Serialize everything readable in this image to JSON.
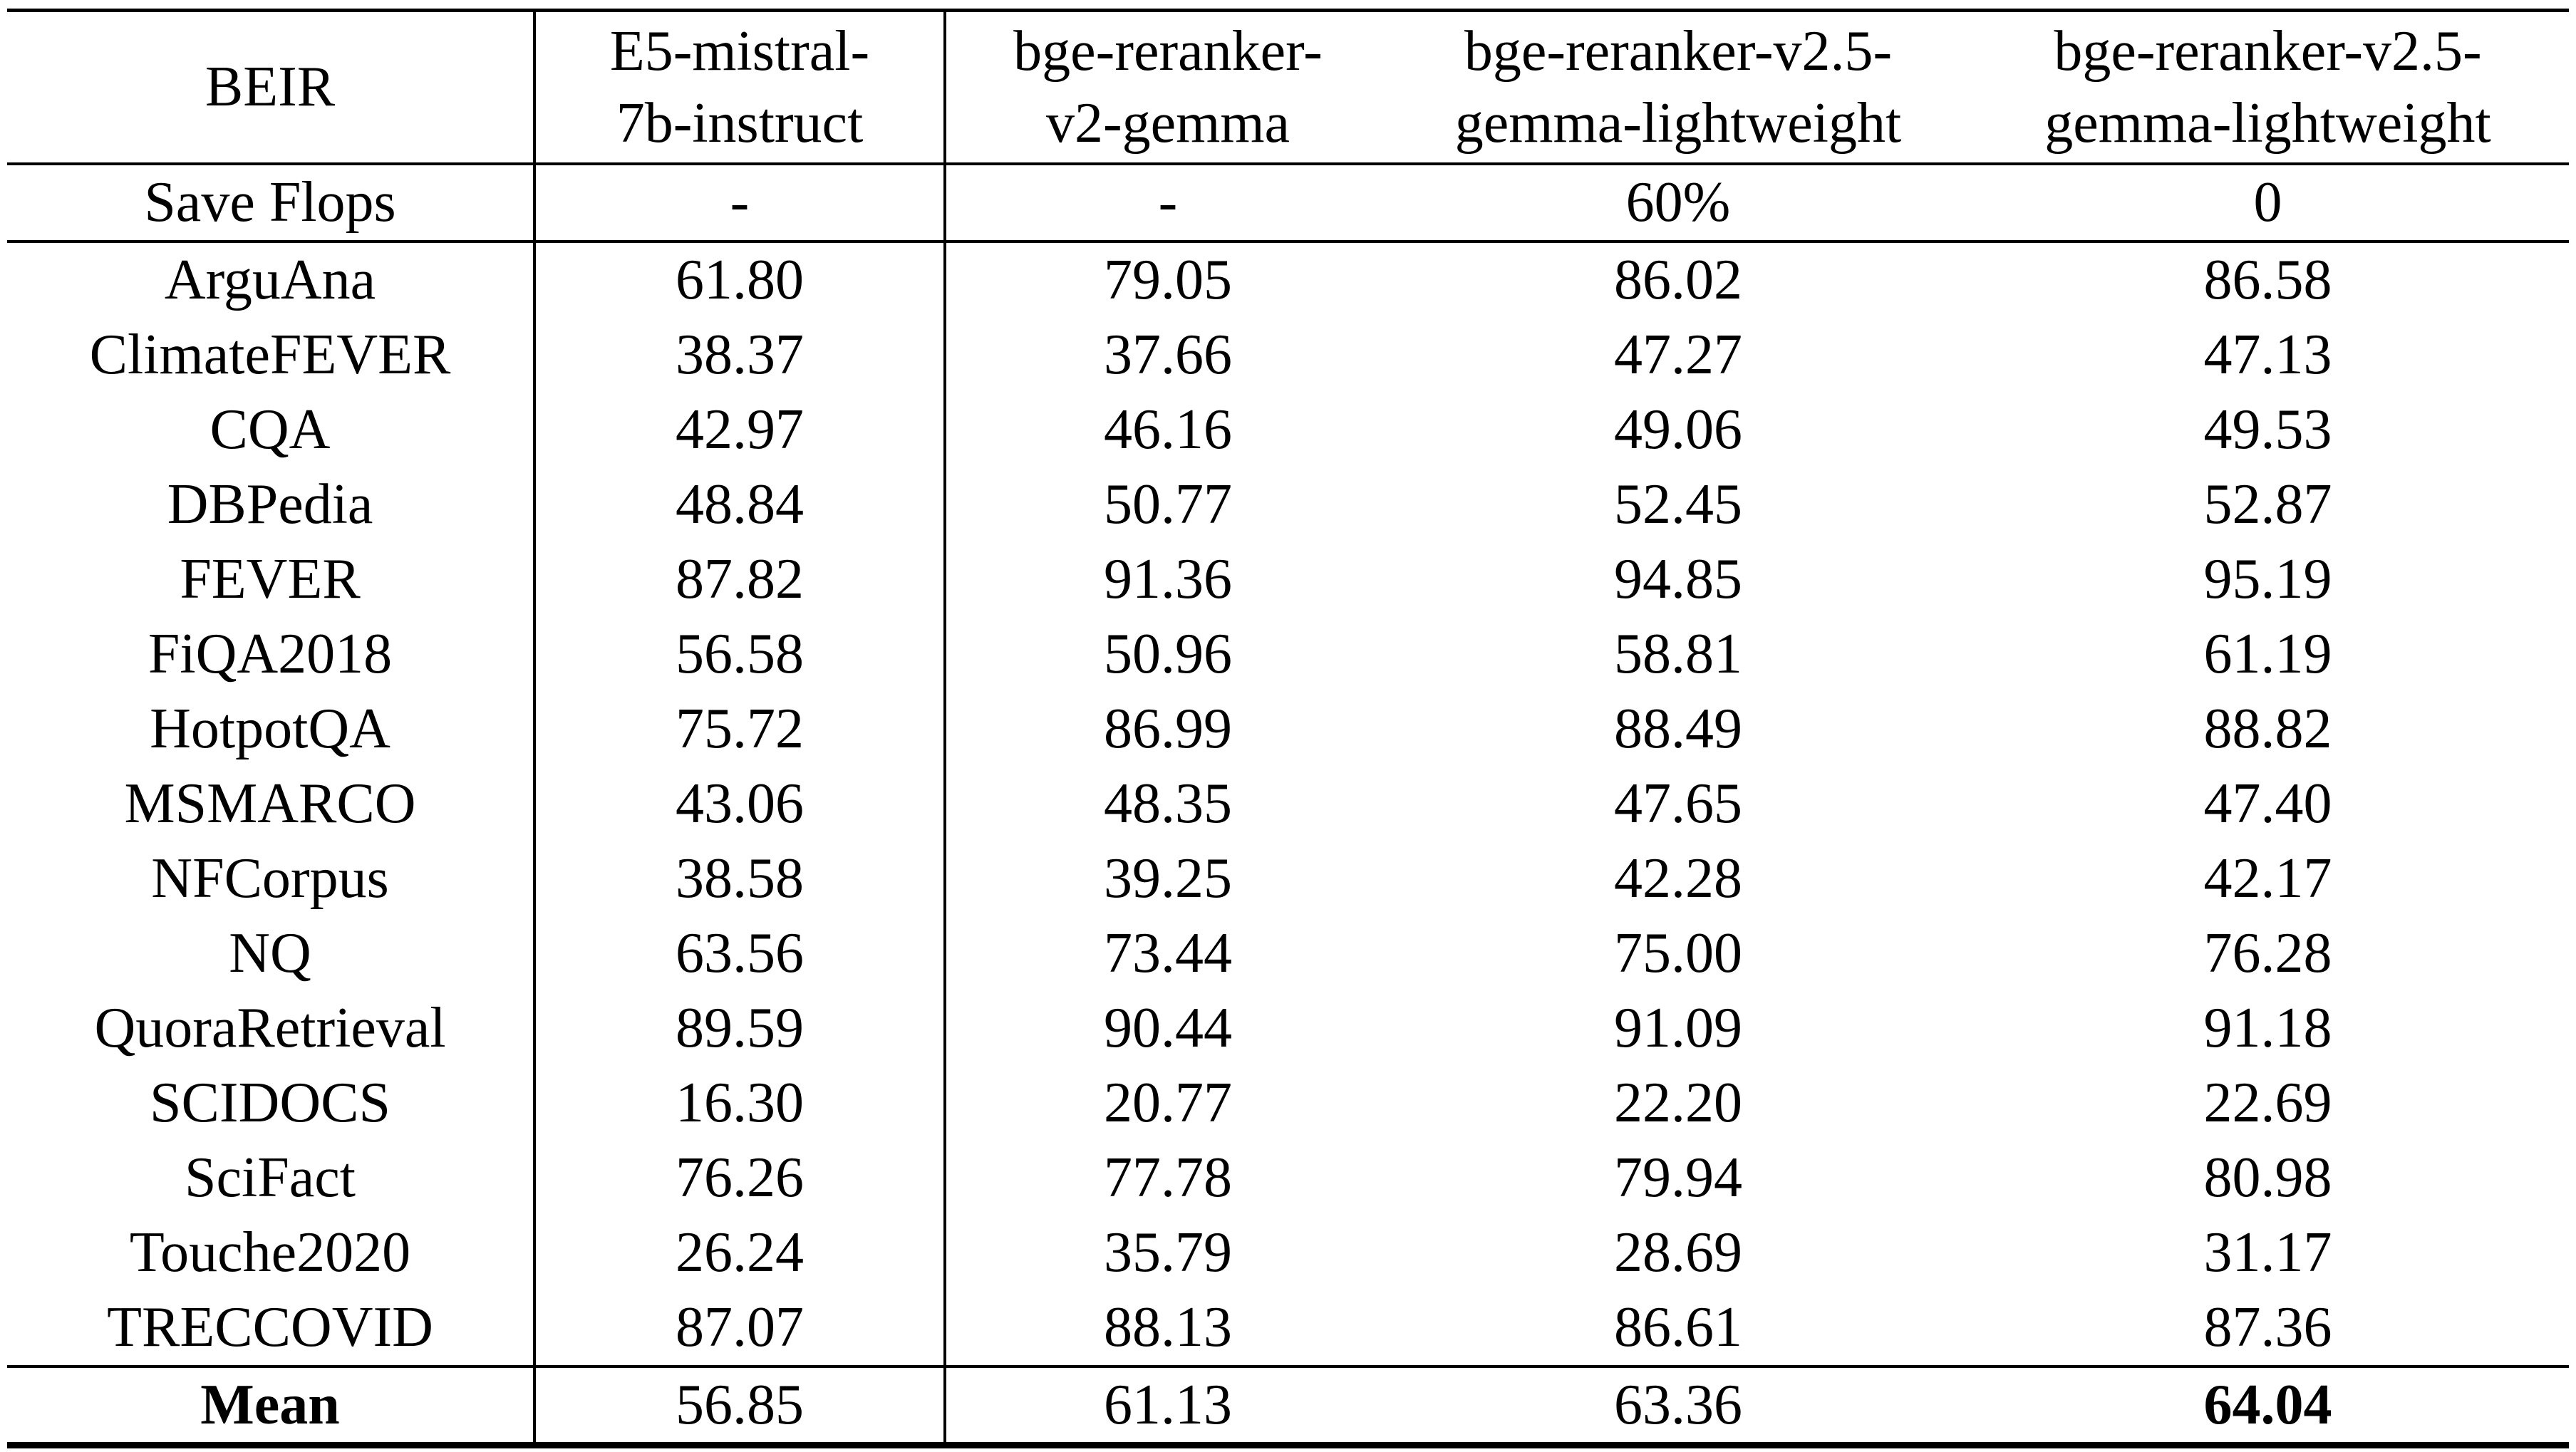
{
  "table": {
    "title": "BEIR",
    "columns": [
      {
        "lines": [
          "BEIR"
        ]
      },
      {
        "lines": [
          "E5-mistral-",
          "7b-instruct"
        ]
      },
      {
        "lines": [
          "bge-reranker-",
          "v2-gemma"
        ]
      },
      {
        "lines": [
          "bge-reranker-v2.5-",
          "gemma-lightweight"
        ]
      },
      {
        "lines": [
          "bge-reranker-v2.5-",
          "gemma-lightweight"
        ]
      }
    ],
    "save_flops": {
      "label": "Save Flops",
      "values": [
        "-",
        "-",
        "60%",
        "0"
      ]
    },
    "rows": [
      {
        "label": "ArguAna",
        "values": [
          "61.80",
          "79.05",
          "86.02",
          "86.58"
        ]
      },
      {
        "label": "ClimateFEVER",
        "values": [
          "38.37",
          "37.66",
          "47.27",
          "47.13"
        ]
      },
      {
        "label": "CQA",
        "values": [
          "42.97",
          "46.16",
          "49.06",
          "49.53"
        ]
      },
      {
        "label": "DBPedia",
        "values": [
          "48.84",
          "50.77",
          "52.45",
          "52.87"
        ]
      },
      {
        "label": "FEVER",
        "values": [
          "87.82",
          "91.36",
          "94.85",
          "95.19"
        ]
      },
      {
        "label": "FiQA2018",
        "values": [
          "56.58",
          "50.96",
          "58.81",
          "61.19"
        ]
      },
      {
        "label": "HotpotQA",
        "values": [
          "75.72",
          "86.99",
          "88.49",
          "88.82"
        ]
      },
      {
        "label": "MSMARCO",
        "values": [
          "43.06",
          "48.35",
          "47.65",
          "47.40"
        ]
      },
      {
        "label": "NFCorpus",
        "values": [
          "38.58",
          "39.25",
          "42.28",
          "42.17"
        ]
      },
      {
        "label": "NQ",
        "values": [
          "63.56",
          "73.44",
          "75.00",
          "76.28"
        ]
      },
      {
        "label": "QuoraRetrieval",
        "values": [
          "89.59",
          "90.44",
          "91.09",
          "91.18"
        ]
      },
      {
        "label": "SCIDOCS",
        "values": [
          "16.30",
          "20.77",
          "22.20",
          "22.69"
        ]
      },
      {
        "label": "SciFact",
        "values": [
          "76.26",
          "77.78",
          "79.94",
          "80.98"
        ]
      },
      {
        "label": "Touche2020",
        "values": [
          "26.24",
          "35.79",
          "28.69",
          "31.17"
        ]
      },
      {
        "label": "TRECCOVID",
        "values": [
          "87.07",
          "88.13",
          "86.61",
          "87.36"
        ]
      }
    ],
    "mean": {
      "label": "Mean",
      "values": [
        "56.85",
        "61.13",
        "63.36",
        "64.04"
      ]
    }
  }
}
